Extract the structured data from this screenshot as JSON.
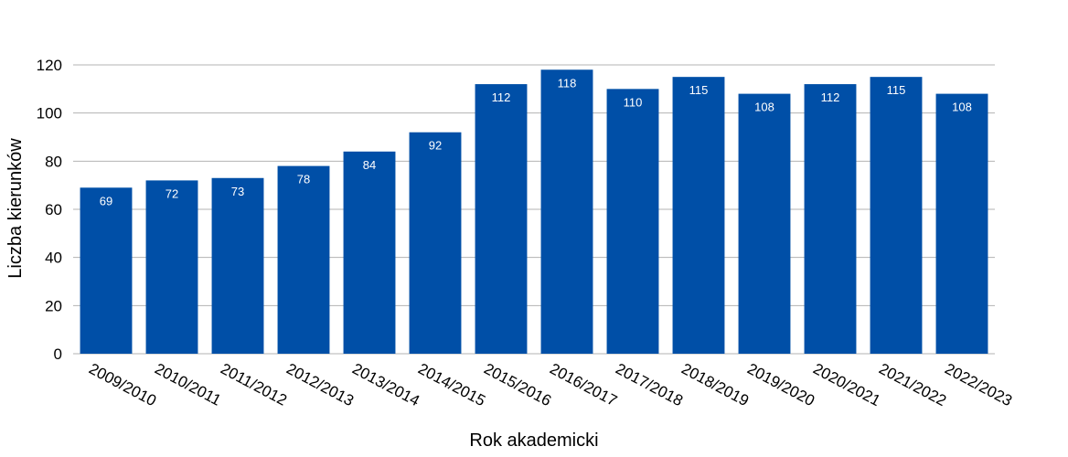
{
  "chart_data": {
    "type": "bar",
    "categories": [
      "2009/2010",
      "2010/2011",
      "2011/2012",
      "2012/2013",
      "2013/2014",
      "2014/2015",
      "2015/2016",
      "2016/2017",
      "2017/2018",
      "2018/2019",
      "2019/2020",
      "2020/2021",
      "2021/2022",
      "2022/2023"
    ],
    "values": [
      69,
      72,
      73,
      78,
      84,
      92,
      112,
      118,
      110,
      115,
      108,
      112,
      115,
      108
    ],
    "data_labels": [
      "69",
      "72",
      "73",
      "78",
      "84",
      "92",
      "112",
      "118",
      "110",
      "115",
      "108",
      "112",
      "115",
      "108"
    ],
    "xlabel": "Rok akademicki",
    "ylabel": "Liczba kierunków",
    "ylim": [
      0,
      120
    ],
    "yticks": [
      "0",
      "20",
      "40",
      "60",
      "80",
      "100",
      "120"
    ],
    "grid": true,
    "legend": "none",
    "bar_color": "#004fa7",
    "label_color": "#ffffff"
  }
}
